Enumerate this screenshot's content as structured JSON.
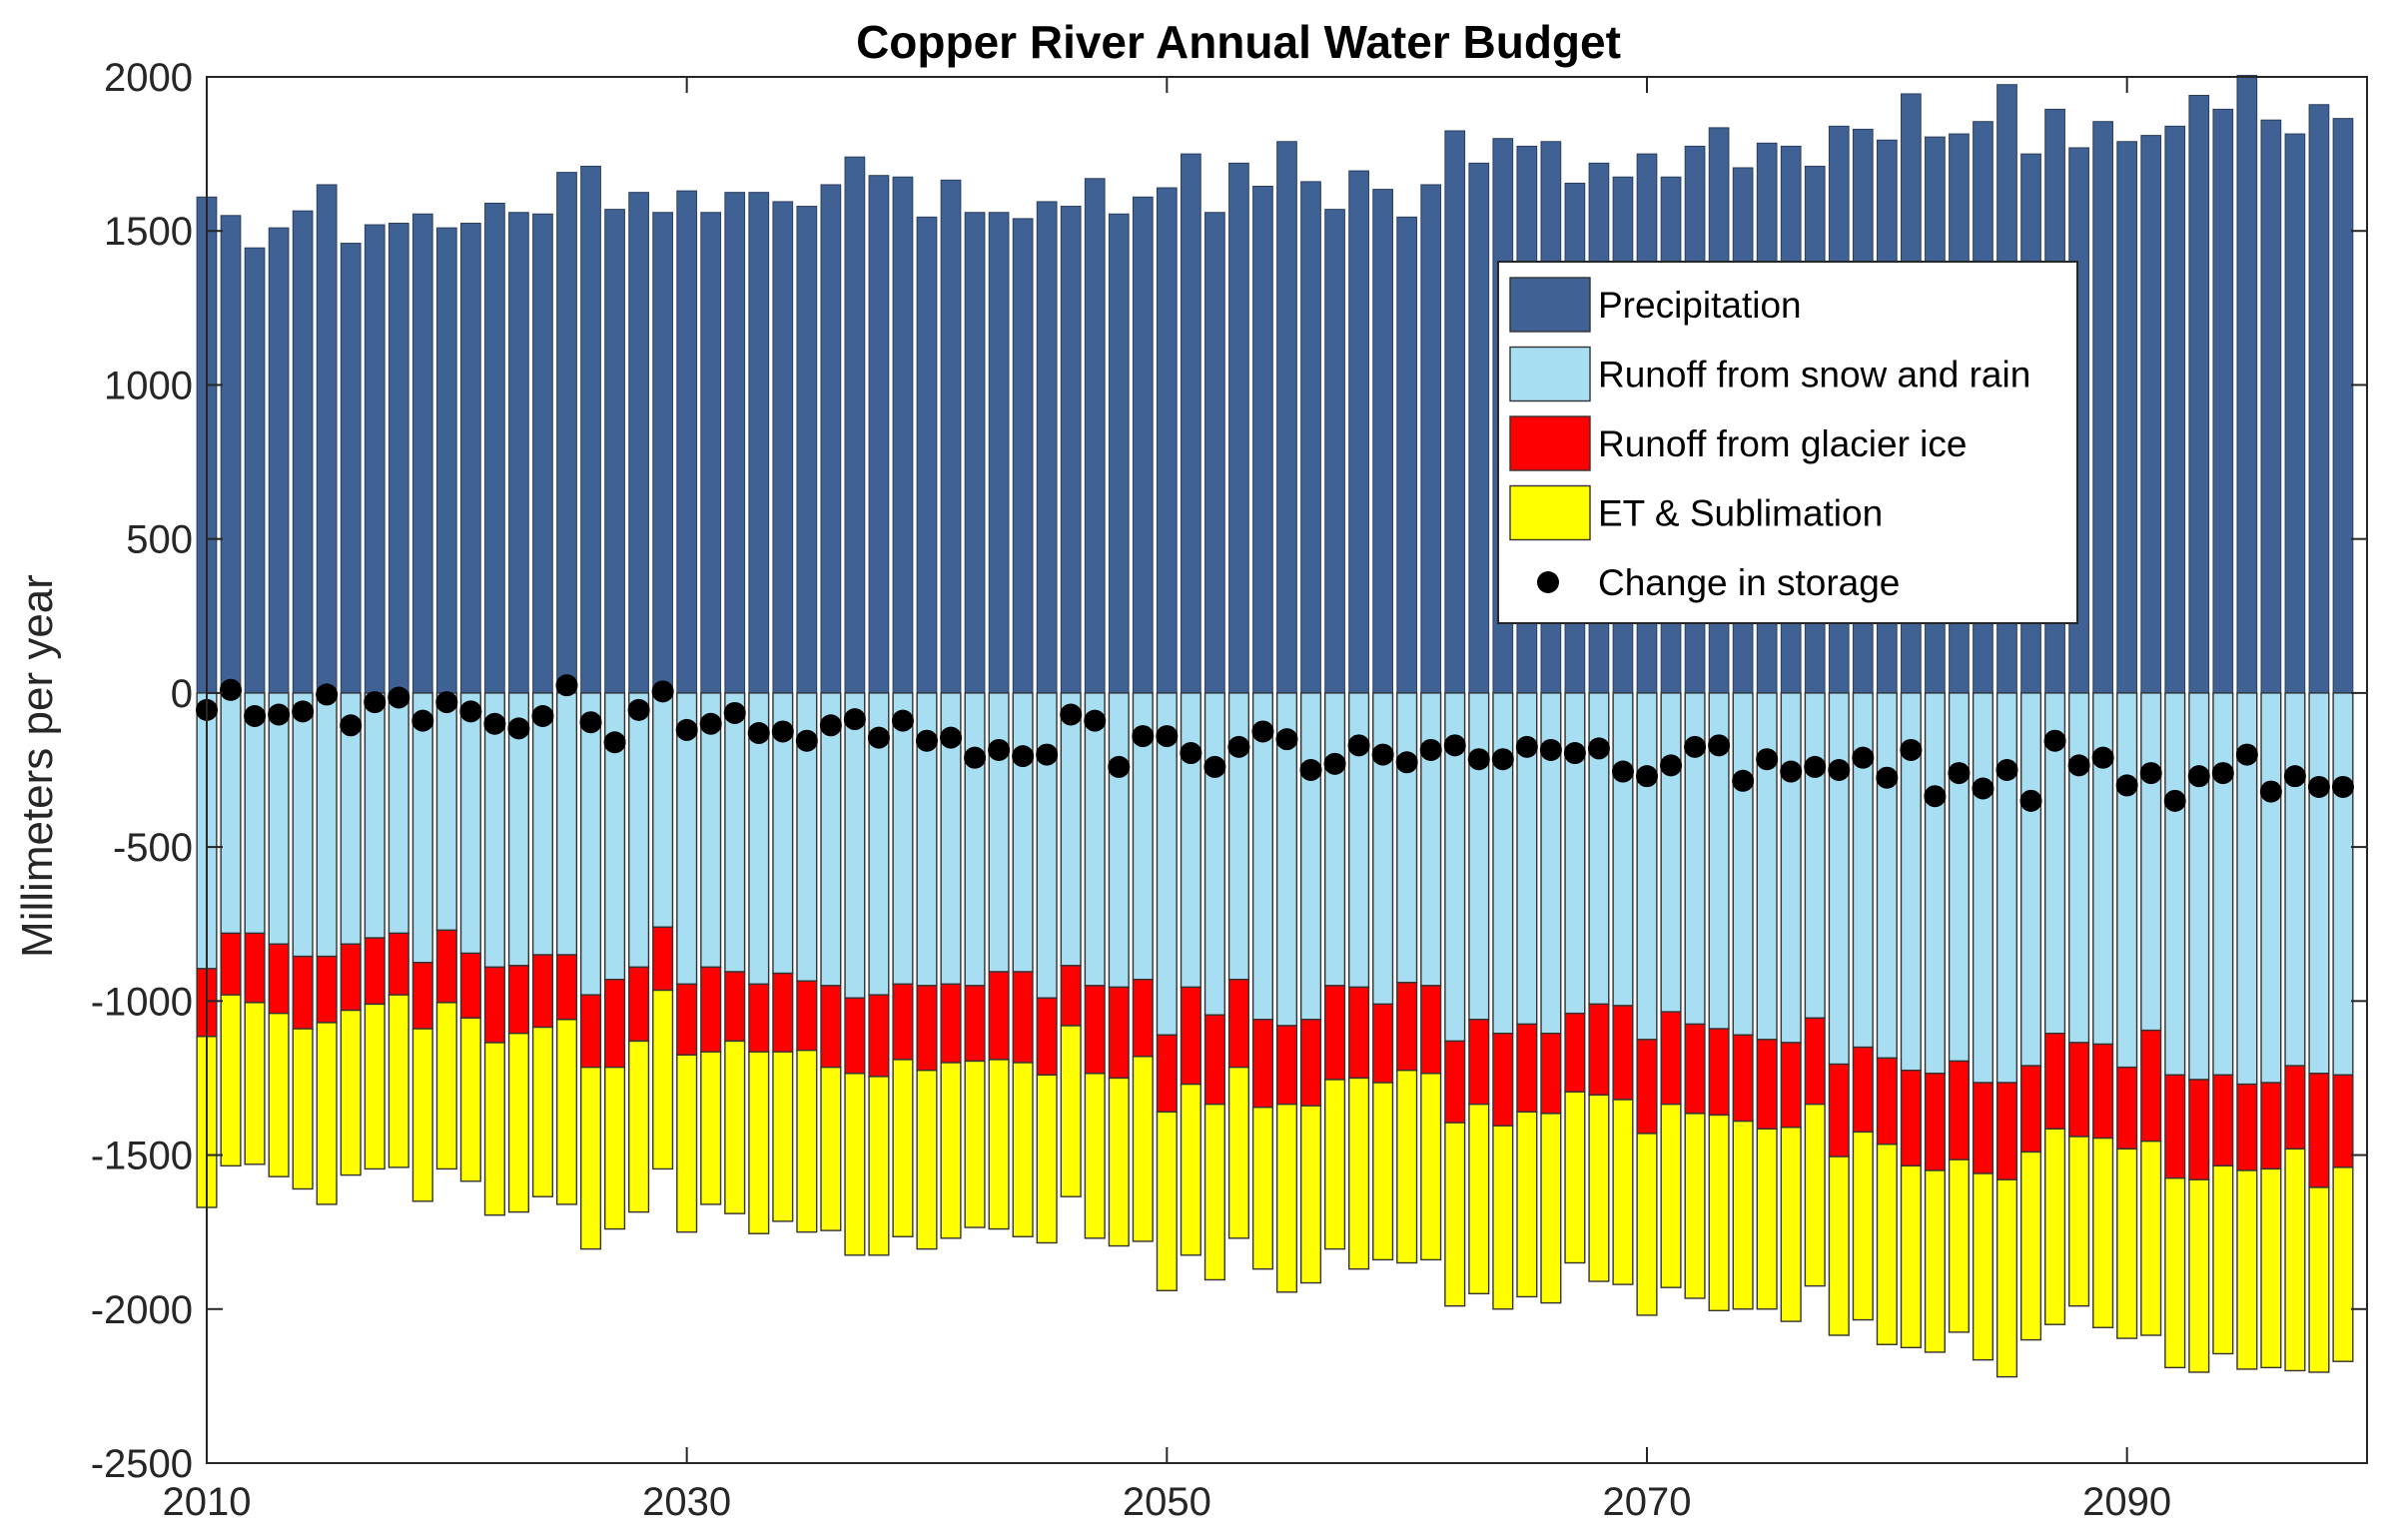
{
  "chart_data": {
    "type": "bar",
    "title": "Copper River Annual Water Budget",
    "xlabel": "",
    "ylabel": "Millimeters per year",
    "xlim": [
      2010,
      2100
    ],
    "ylim": [
      -2500,
      2000
    ],
    "xticks": [
      2010,
      2030,
      2050,
      2070,
      2090
    ],
    "yticks": [
      2000,
      1500,
      1000,
      500,
      0,
      -500,
      -1000,
      -1500,
      -2000,
      -2500
    ],
    "legend_position": "top-right",
    "stacked": true,
    "x": [
      2010,
      2011,
      2012,
      2013,
      2014,
      2015,
      2016,
      2017,
      2018,
      2019,
      2020,
      2021,
      2022,
      2023,
      2024,
      2025,
      2026,
      2027,
      2028,
      2029,
      2030,
      2031,
      2032,
      2033,
      2034,
      2035,
      2036,
      2037,
      2038,
      2039,
      2040,
      2041,
      2042,
      2043,
      2044,
      2045,
      2046,
      2047,
      2048,
      2049,
      2050,
      2051,
      2052,
      2053,
      2054,
      2055,
      2056,
      2057,
      2058,
      2059,
      2060,
      2061,
      2062,
      2063,
      2064,
      2065,
      2066,
      2067,
      2068,
      2069,
      2070,
      2071,
      2072,
      2073,
      2074,
      2075,
      2076,
      2077,
      2078,
      2079,
      2080,
      2081,
      2082,
      2083,
      2084,
      2085,
      2086,
      2087,
      2088,
      2089,
      2090,
      2091,
      2092,
      2093,
      2094,
      2095,
      2096,
      2097,
      2098,
      2099
    ],
    "series": [
      {
        "name": "Precipitation",
        "color": "#3f6194",
        "values": [
          1610,
          1550,
          1445,
          1510,
          1565,
          1650,
          1460,
          1520,
          1525,
          1555,
          1510,
          1525,
          1590,
          1560,
          1555,
          1690,
          1710,
          1570,
          1625,
          1560,
          1630,
          1560,
          1625,
          1625,
          1595,
          1580,
          1650,
          1740,
          1680,
          1675,
          1545,
          1665,
          1560,
          1560,
          1540,
          1595,
          1580,
          1670,
          1555,
          1610,
          1640,
          1750,
          1560,
          1720,
          1645,
          1790,
          1660,
          1570,
          1695,
          1635,
          1545,
          1650,
          1825,
          1720,
          1800,
          1775,
          1790,
          1655,
          1720,
          1675,
          1750,
          1675,
          1775,
          1835,
          1705,
          1785,
          1775,
          1710,
          1840,
          1830,
          1795,
          1945,
          1805,
          1815,
          1855,
          1975,
          1750,
          1895,
          1770,
          1855,
          1790,
          1810,
          1840,
          1940,
          1895,
          2005,
          1860,
          1815,
          1910,
          1865
        ]
      },
      {
        "name": "Runoff from snow and rain",
        "color": "#a8def2",
        "values": [
          -895,
          -780,
          -780,
          -815,
          -855,
          -855,
          -815,
          -795,
          -780,
          -875,
          -770,
          -845,
          -890,
          -885,
          -850,
          -850,
          -980,
          -930,
          -890,
          -760,
          -945,
          -890,
          -905,
          -945,
          -910,
          -935,
          -950,
          -990,
          -980,
          -945,
          -950,
          -945,
          -950,
          -905,
          -905,
          -990,
          -885,
          -950,
          -955,
          -930,
          -1110,
          -955,
          -1045,
          -930,
          -1060,
          -1080,
          -1060,
          -950,
          -955,
          -1010,
          -940,
          -950,
          -1130,
          -1060,
          -1105,
          -1075,
          -1105,
          -1040,
          -1010,
          -1015,
          -1125,
          -1035,
          -1075,
          -1090,
          -1110,
          -1125,
          -1135,
          -1055,
          -1205,
          -1150,
          -1185,
          -1225,
          -1235,
          -1195,
          -1265,
          -1265,
          -1210,
          -1105,
          -1135,
          -1140,
          -1215,
          -1095,
          -1240,
          -1255,
          -1240,
          -1270,
          -1265,
          -1210,
          -1235,
          -1240
        ]
      },
      {
        "name": "Runoff from glacier ice",
        "color": "#ff0000",
        "values": [
          -220,
          -200,
          -225,
          -225,
          -235,
          -215,
          -215,
          -215,
          -200,
          -215,
          -235,
          -210,
          -245,
          -220,
          -235,
          -210,
          -235,
          -285,
          -240,
          -205,
          -230,
          -275,
          -225,
          -220,
          -255,
          -225,
          -265,
          -245,
          -265,
          -245,
          -275,
          -255,
          -245,
          -285,
          -295,
          -250,
          -195,
          -285,
          -295,
          -250,
          -250,
          -315,
          -290,
          -285,
          -285,
          -255,
          -280,
          -305,
          -295,
          -255,
          -285,
          -285,
          -265,
          -275,
          -300,
          -285,
          -260,
          -255,
          -295,
          -305,
          -305,
          -300,
          -290,
          -280,
          -280,
          -290,
          -275,
          -280,
          -300,
          -275,
          -280,
          -310,
          -315,
          -320,
          -295,
          -315,
          -280,
          -310,
          -305,
          -305,
          -265,
          -360,
          -335,
          -325,
          -295,
          -280,
          -280,
          -270,
          -370,
          -300
        ]
      },
      {
        "name": "ET & Sublimation",
        "color": "#ffff00",
        "values": [
          -555,
          -555,
          -525,
          -530,
          -520,
          -590,
          -535,
          -535,
          -560,
          -560,
          -540,
          -530,
          -560,
          -580,
          -550,
          -600,
          -590,
          -525,
          -555,
          -580,
          -575,
          -495,
          -560,
          -590,
          -550,
          -590,
          -530,
          -590,
          -580,
          -575,
          -580,
          -570,
          -540,
          -550,
          -565,
          -545,
          -555,
          -535,
          -545,
          -600,
          -580,
          -555,
          -570,
          -555,
          -525,
          -610,
          -575,
          -550,
          -620,
          -575,
          -625,
          -605,
          -595,
          -615,
          -595,
          -600,
          -615,
          -555,
          -605,
          -600,
          -590,
          -595,
          -600,
          -635,
          -610,
          -585,
          -630,
          -590,
          -580,
          -610,
          -650,
          -590,
          -590,
          -560,
          -605,
          -640,
          -610,
          -635,
          -550,
          -615,
          -615,
          -630,
          -615,
          -625,
          -610,
          -645,
          -645,
          -720,
          -600,
          -630
        ]
      },
      {
        "name": "Change in storage",
        "color": "#000000",
        "marker": "circle",
        "values": [
          -55,
          10,
          -75,
          -70,
          -60,
          -5,
          -105,
          -30,
          -15,
          -90,
          -30,
          -60,
          -100,
          -115,
          -75,
          25,
          -95,
          -160,
          -55,
          5,
          -120,
          -100,
          -65,
          -130,
          -125,
          -155,
          -105,
          -85,
          -145,
          -90,
          -155,
          -145,
          -210,
          -185,
          -205,
          -200,
          -70,
          -90,
          -240,
          -140,
          -140,
          -195,
          -240,
          -175,
          -125,
          -150,
          -250,
          -230,
          -170,
          -200,
          -225,
          -185,
          -170,
          -215,
          -215,
          -175,
          -185,
          -195,
          -180,
          -255,
          -270,
          -235,
          -175,
          -170,
          -285,
          -215,
          -255,
          -240,
          -250,
          -210,
          -275,
          -185,
          -335,
          -260,
          -310,
          -250,
          -350,
          -155,
          -235,
          -210,
          -300,
          -260,
          -350,
          -270,
          -260,
          -200,
          -320,
          -270,
          -305,
          -305
        ]
      }
    ]
  }
}
